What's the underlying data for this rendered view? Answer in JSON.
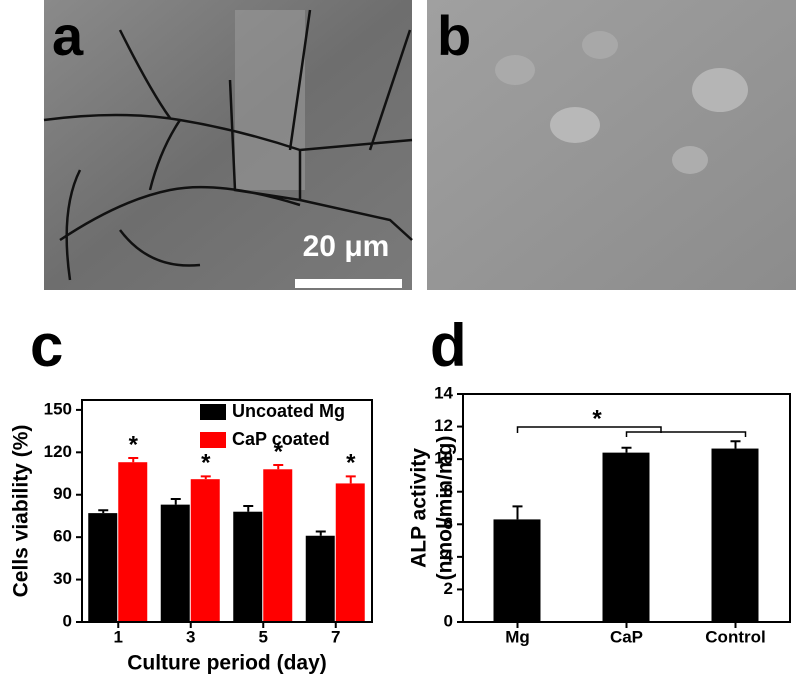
{
  "panel_labels": [
    "a",
    "b",
    "c",
    "d"
  ],
  "scale_bar": "20 μm",
  "chart_data": [
    {
      "type": "bar",
      "xlabel": "Culture period (day)",
      "ylabel": [
        "Cells viability (%)"
      ],
      "categories": [
        "1",
        "3",
        "5",
        "7"
      ],
      "series": [
        {
          "name": "Uncoated Mg",
          "color": "#000000",
          "values": [
            77,
            83,
            78,
            61
          ],
          "errors": [
            2,
            4,
            4,
            3
          ]
        },
        {
          "name": "CaP coated",
          "color": "#ff0000",
          "values": [
            113,
            101,
            108,
            98
          ],
          "errors": [
            3,
            2,
            3,
            5
          ]
        }
      ],
      "significance_labels": [
        "*",
        "*",
        "*",
        "*"
      ],
      "ylim": [
        0,
        157
      ],
      "yticks": [
        0,
        30,
        60,
        90,
        120,
        150
      ],
      "legend": "top-right"
    },
    {
      "type": "bar",
      "ylabel": [
        "ALP activity",
        "(nmol/min/mg)"
      ],
      "categories": [
        "Mg",
        "CaP",
        "Control"
      ],
      "series": [
        {
          "color": "#000000",
          "values": [
            6.3,
            10.4,
            10.65
          ],
          "errors": [
            0.8,
            0.3,
            0.45
          ]
        }
      ],
      "significance_labels": [
        "*"
      ],
      "ylim": [
        0,
        14
      ],
      "yticks": [
        0,
        2,
        4,
        6,
        8,
        10,
        12,
        14
      ]
    }
  ]
}
